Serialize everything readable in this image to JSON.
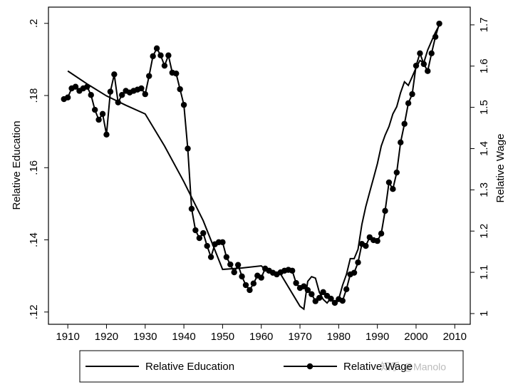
{
  "chart_data": {
    "type": "line",
    "xlabel": "",
    "ylabel": "Relative Education",
    "y2label": "Relative Wage",
    "xlim": [
      1905,
      2014
    ],
    "xticks": [
      1910,
      1920,
      1930,
      1940,
      1950,
      1960,
      1970,
      1980,
      1990,
      2000,
      2010
    ],
    "ylim": [
      0.1166,
      0.2045
    ],
    "yticks": [
      {
        "value": 0.12,
        "label": ".12"
      },
      {
        "value": 0.14,
        "label": ".14"
      },
      {
        "value": 0.16,
        "label": ".16"
      },
      {
        "value": 0.18,
        "label": ".18"
      },
      {
        "value": 0.2,
        "label": ".2"
      }
    ],
    "y2lim": [
      0.974,
      1.743
    ],
    "y2ticks": [
      1,
      1.1,
      1.2,
      1.3,
      1.4,
      1.5,
      1.6,
      1.7
    ],
    "grid": false,
    "legend": "bottom",
    "watermark": "知乎 @Manolo",
    "series": [
      {
        "name": "Relative Education",
        "color": "#000000",
        "axis": "y",
        "marker": "none",
        "x": [
          1910,
          1915,
          1920,
          1925,
          1930,
          1935,
          1940,
          1945,
          1950,
          1955,
          1960,
          1961,
          1965,
          1970,
          1971,
          1972,
          1973,
          1974,
          1975,
          1976,
          1977,
          1978,
          1979,
          1980,
          1981,
          1982,
          1983,
          1984,
          1985,
          1986,
          1987,
          1988,
          1989,
          1990,
          1991,
          1992,
          1993,
          1994,
          1995,
          1996,
          1997,
          1998,
          1999,
          2000,
          2001,
          2002,
          2003,
          2004,
          2005,
          2006
        ],
        "values": [
          0.1868,
          0.1832,
          0.1799,
          0.1773,
          0.1749,
          0.166,
          0.1561,
          0.1453,
          0.1318,
          0.1322,
          0.1328,
          0.1318,
          0.1305,
          0.1216,
          0.1208,
          0.1285,
          0.1298,
          0.1294,
          0.1255,
          0.1235,
          0.1225,
          0.1239,
          0.1225,
          0.1235,
          0.1274,
          0.1304,
          0.1348,
          0.1348,
          0.1374,
          0.1443,
          0.1492,
          0.1532,
          0.1571,
          0.1611,
          0.166,
          0.169,
          0.1714,
          0.1749,
          0.1769,
          0.1808,
          0.1838,
          0.1828,
          0.1852,
          0.1877,
          0.1897,
          0.1891,
          0.1926,
          0.1951,
          0.1975,
          0.1995
        ]
      },
      {
        "name": "Relative Wage",
        "color": "#000000",
        "axis": "y2",
        "marker": "circle",
        "x": [
          1909,
          1910,
          1911,
          1912,
          1913,
          1914,
          1915,
          1916,
          1917,
          1918,
          1919,
          1920,
          1921,
          1922,
          1923,
          1924,
          1925,
          1926,
          1927,
          1928,
          1929,
          1930,
          1931,
          1932,
          1933,
          1934,
          1935,
          1936,
          1937,
          1938,
          1939,
          1940,
          1941,
          1942,
          1943,
          1944,
          1945,
          1946,
          1947,
          1948,
          1949,
          1950,
          1951,
          1952,
          1953,
          1954,
          1955,
          1956,
          1957,
          1958,
          1959,
          1960,
          1961,
          1962,
          1963,
          1964,
          1965,
          1966,
          1967,
          1968,
          1969,
          1970,
          1971,
          1972,
          1973,
          1974,
          1975,
          1976,
          1977,
          1978,
          1979,
          1980,
          1981,
          1982,
          1983,
          1984,
          1985,
          1986,
          1987,
          1988,
          1989,
          1990,
          1991,
          1992,
          1993,
          1994,
          1995,
          1996,
          1997,
          1998,
          1999,
          2000,
          2001,
          2002,
          2003,
          2004,
          2005,
          2006
        ],
        "values": [
          1.52,
          1.524,
          1.546,
          1.55,
          1.54,
          1.546,
          1.55,
          1.53,
          1.494,
          1.47,
          1.484,
          1.434,
          1.538,
          1.58,
          1.512,
          1.53,
          1.54,
          1.536,
          1.54,
          1.543,
          1.546,
          1.532,
          1.576,
          1.624,
          1.643,
          1.626,
          1.601,
          1.626,
          1.584,
          1.582,
          1.544,
          1.506,
          1.4,
          1.254,
          1.202,
          1.183,
          1.195,
          1.164,
          1.137,
          1.168,
          1.173,
          1.173,
          1.137,
          1.119,
          1.1,
          1.118,
          1.09,
          1.069,
          1.057,
          1.073,
          1.092,
          1.087,
          1.109,
          1.104,
          1.099,
          1.095,
          1.1,
          1.104,
          1.106,
          1.104,
          1.074,
          1.062,
          1.066,
          1.057,
          1.047,
          1.03,
          1.038,
          1.052,
          1.043,
          1.036,
          1.026,
          1.035,
          1.031,
          1.059,
          1.095,
          1.099,
          1.124,
          1.169,
          1.164,
          1.185,
          1.178,
          1.176,
          1.194,
          1.249,
          1.318,
          1.302,
          1.342,
          1.415,
          1.46,
          1.51,
          1.532,
          1.601,
          1.631,
          1.605,
          1.588,
          1.631,
          1.671,
          1.703
        ]
      }
    ]
  }
}
